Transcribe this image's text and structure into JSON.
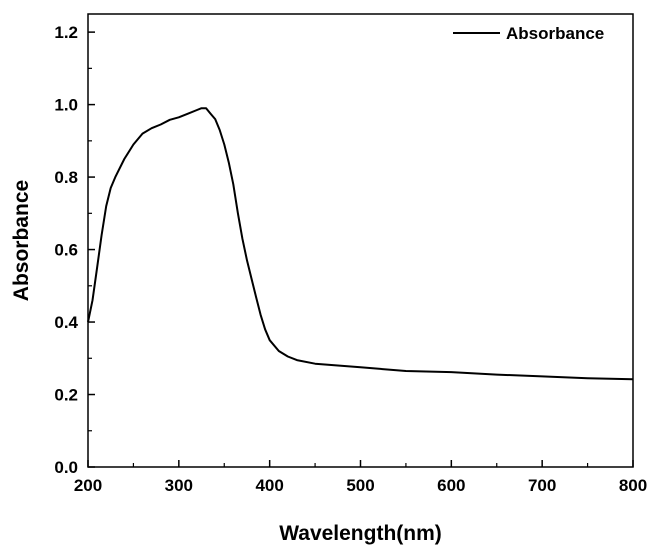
{
  "chart_data": {
    "type": "line",
    "title": "",
    "xlabel": "Wavelength(nm)",
    "ylabel": "Absorbance",
    "xlim": [
      200,
      800
    ],
    "ylim": [
      0.0,
      1.25
    ],
    "xticks": [
      200,
      300,
      400,
      500,
      600,
      700,
      800
    ],
    "yticks": [
      0.0,
      0.2,
      0.4,
      0.6,
      0.8,
      1.0,
      1.2
    ],
    "xtick_labels": [
      "200",
      "300",
      "400",
      "500",
      "600",
      "700",
      "800"
    ],
    "ytick_labels": [
      "0.0",
      "0.2",
      "0.4",
      "0.6",
      "0.8",
      "1.0",
      "1.2"
    ],
    "grid": false,
    "legend": {
      "position": "top-right",
      "entries": [
        "Absorbance"
      ]
    },
    "series": [
      {
        "name": "Absorbance",
        "color": "#000000",
        "x": [
          200,
          205,
          210,
          215,
          220,
          225,
          230,
          240,
          250,
          260,
          270,
          280,
          290,
          300,
          310,
          320,
          325,
          330,
          335,
          340,
          345,
          350,
          355,
          360,
          365,
          370,
          375,
          380,
          385,
          390,
          395,
          400,
          410,
          420,
          430,
          450,
          500,
          550,
          600,
          650,
          700,
          750,
          800
        ],
        "y": [
          0.4,
          0.46,
          0.55,
          0.64,
          0.72,
          0.77,
          0.8,
          0.85,
          0.89,
          0.92,
          0.935,
          0.945,
          0.958,
          0.965,
          0.975,
          0.985,
          0.99,
          0.99,
          0.975,
          0.96,
          0.93,
          0.89,
          0.84,
          0.78,
          0.7,
          0.63,
          0.57,
          0.52,
          0.47,
          0.42,
          0.38,
          0.35,
          0.32,
          0.305,
          0.295,
          0.285,
          0.275,
          0.265,
          0.262,
          0.255,
          0.25,
          0.245,
          0.242
        ]
      }
    ]
  }
}
